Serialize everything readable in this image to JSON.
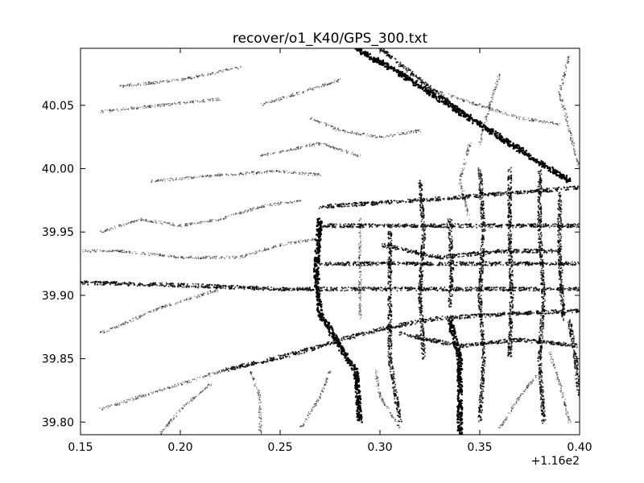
{
  "chart_data": {
    "type": "scatter",
    "title": "recover/o1_K40/GPS_300.txt",
    "xlabel": "",
    "ylabel": "",
    "x_offset_label": "+1.16e2",
    "xlim": [
      0.15,
      0.4
    ],
    "ylim": [
      39.79,
      40.095
    ],
    "x_ticks": [
      0.15,
      0.2,
      0.25,
      0.3,
      0.35,
      0.4
    ],
    "x_tick_labels": [
      "0.15",
      "0.20",
      "0.25",
      "0.30",
      "0.35",
      "0.40"
    ],
    "y_ticks": [
      39.8,
      39.85,
      39.9,
      39.95,
      40.0,
      40.05
    ],
    "y_tick_labels": [
      "39.80",
      "39.85",
      "39.90",
      "39.95",
      "40.00",
      "40.05"
    ],
    "grid": false,
    "marker_color": "#000000",
    "series": [
      {
        "kind": "tracks",
        "tracks": [
          {
            "points": [
              [
                0.288,
                40.095
              ],
              [
                0.31,
                40.075
              ],
              [
                0.34,
                40.045
              ],
              [
                0.36,
                40.025
              ],
              [
                0.38,
                40.005
              ],
              [
                0.395,
                39.99
              ]
            ],
            "weight": 3
          },
          {
            "points": [
              [
                0.3,
                40.095
              ],
              [
                0.32,
                40.07
              ],
              [
                0.345,
                40.04
              ]
            ],
            "weight": 2
          },
          {
            "points": [
              [
                0.27,
                39.96
              ],
              [
                0.268,
                39.92
              ],
              [
                0.27,
                39.885
              ],
              [
                0.28,
                39.86
              ],
              [
                0.288,
                39.84
              ],
              [
                0.29,
                39.8
              ]
            ],
            "weight": 3
          },
          {
            "points": [
              [
                0.335,
                39.88
              ],
              [
                0.34,
                39.85
              ],
              [
                0.34,
                39.82
              ],
              [
                0.34,
                39.79
              ]
            ],
            "weight": 3
          },
          {
            "points": [
              [
                0.395,
                39.88
              ],
              [
                0.398,
                39.85
              ],
              [
                0.4,
                39.82
              ]
            ],
            "weight": 2
          },
          {
            "points": [
              [
                0.22,
                39.84
              ],
              [
                0.26,
                39.855
              ],
              [
                0.28,
                39.865
              ],
              [
                0.305,
                39.875
              ],
              [
                0.33,
                39.882
              ],
              [
                0.36,
                39.885
              ],
              [
                0.4,
                39.888
              ]
            ],
            "weight": 2
          },
          {
            "points": [
              [
                0.15,
                39.91
              ],
              [
                0.2,
                39.908
              ],
              [
                0.25,
                39.905
              ],
              [
                0.3,
                39.905
              ],
              [
                0.35,
                39.905
              ],
              [
                0.4,
                39.905
              ]
            ],
            "weight": 2
          },
          {
            "points": [
              [
                0.27,
                39.925
              ],
              [
                0.3,
                39.925
              ],
              [
                0.35,
                39.925
              ],
              [
                0.4,
                39.925
              ]
            ],
            "weight": 2
          },
          {
            "points": [
              [
                0.27,
                39.955
              ],
              [
                0.31,
                39.955
              ],
              [
                0.35,
                39.955
              ],
              [
                0.4,
                39.955
              ]
            ],
            "weight": 2
          },
          {
            "points": [
              [
                0.27,
                39.97
              ],
              [
                0.32,
                39.975
              ],
              [
                0.36,
                39.98
              ],
              [
                0.4,
                39.985
              ]
            ],
            "weight": 2
          },
          {
            "points": [
              [
                0.3,
                39.94
              ],
              [
                0.33,
                39.93
              ],
              [
                0.36,
                39.935
              ],
              [
                0.39,
                39.935
              ]
            ],
            "weight": 2
          },
          {
            "points": [
              [
                0.31,
                39.87
              ],
              [
                0.34,
                39.86
              ],
              [
                0.37,
                39.865
              ],
              [
                0.4,
                39.86
              ]
            ],
            "weight": 2
          },
          {
            "points": [
              [
                0.305,
                39.95
              ],
              [
                0.305,
                39.9
              ],
              [
                0.305,
                39.85
              ],
              [
                0.31,
                39.8
              ]
            ],
            "weight": 2
          },
          {
            "points": [
              [
                0.32,
                39.99
              ],
              [
                0.322,
                39.95
              ],
              [
                0.32,
                39.9
              ],
              [
                0.322,
                39.85
              ]
            ],
            "weight": 2
          },
          {
            "points": [
              [
                0.35,
                40.0
              ],
              [
                0.352,
                39.95
              ],
              [
                0.35,
                39.9
              ],
              [
                0.352,
                39.85
              ],
              [
                0.35,
                39.8
              ]
            ],
            "weight": 2
          },
          {
            "points": [
              [
                0.365,
                40.0
              ],
              [
                0.365,
                39.95
              ],
              [
                0.366,
                39.9
              ],
              [
                0.365,
                39.85
              ]
            ],
            "weight": 2
          },
          {
            "points": [
              [
                0.38,
                40.0
              ],
              [
                0.38,
                39.95
              ],
              [
                0.382,
                39.9
              ],
              [
                0.38,
                39.85
              ],
              [
                0.382,
                39.8
              ]
            ],
            "weight": 2
          },
          {
            "points": [
              [
                0.39,
                39.98
              ],
              [
                0.39,
                39.93
              ],
              [
                0.392,
                39.88
              ]
            ],
            "weight": 2
          },
          {
            "points": [
              [
                0.29,
                39.96
              ],
              [
                0.29,
                39.92
              ],
              [
                0.29,
                39.88
              ]
            ],
            "weight": 1
          },
          {
            "points": [
              [
                0.335,
                39.96
              ],
              [
                0.336,
                39.92
              ],
              [
                0.335,
                39.89
              ]
            ],
            "weight": 2
          },
          {
            "points": [
              [
                0.265,
                40.04
              ],
              [
                0.28,
                40.03
              ],
              [
                0.3,
                40.025
              ],
              [
                0.32,
                40.03
              ]
            ],
            "weight": 1
          },
          {
            "points": [
              [
                0.24,
                40.05
              ],
              [
                0.26,
                40.06
              ],
              [
                0.28,
                40.07
              ]
            ],
            "weight": 1
          },
          {
            "points": [
              [
                0.33,
                40.06
              ],
              [
                0.35,
                40.05
              ],
              [
                0.37,
                40.04
              ],
              [
                0.39,
                40.035
              ]
            ],
            "weight": 1
          },
          {
            "points": [
              [
                0.185,
                39.99
              ],
              [
                0.22,
                39.995
              ],
              [
                0.25,
                39.998
              ],
              [
                0.27,
                39.995
              ]
            ],
            "weight": 1
          },
          {
            "points": [
              [
                0.24,
                40.01
              ],
              [
                0.27,
                40.02
              ],
              [
                0.29,
                40.01
              ]
            ],
            "weight": 1
          },
          {
            "points": [
              [
                0.35,
                40.02
              ],
              [
                0.355,
                40.05
              ],
              [
                0.36,
                40.075
              ]
            ],
            "weight": 1
          },
          {
            "points": [
              [
                0.23,
                39.93
              ],
              [
                0.25,
                39.94
              ],
              [
                0.27,
                39.945
              ]
            ],
            "weight": 1
          },
          {
            "points": [
              [
                0.15,
                39.935
              ],
              [
                0.17,
                39.935
              ],
              [
                0.2,
                39.93
              ],
              [
                0.23,
                39.93
              ]
            ],
            "weight": 1
          },
          {
            "points": [
              [
                0.16,
                39.87
              ],
              [
                0.19,
                39.89
              ],
              [
                0.22,
                39.905
              ]
            ],
            "weight": 1
          },
          {
            "points": [
              [
                0.16,
                39.81
              ],
              [
                0.18,
                39.82
              ],
              [
                0.2,
                39.83
              ],
              [
                0.22,
                39.84
              ]
            ],
            "weight": 1
          },
          {
            "points": [
              [
                0.19,
                39.79
              ],
              [
                0.2,
                39.81
              ],
              [
                0.215,
                39.83
              ]
            ],
            "weight": 1
          },
          {
            "points": [
              [
                0.24,
                39.79
              ],
              [
                0.24,
                39.82
              ],
              [
                0.235,
                39.84
              ]
            ],
            "weight": 1
          },
          {
            "points": [
              [
                0.26,
                39.795
              ],
              [
                0.27,
                39.82
              ],
              [
                0.275,
                39.84
              ]
            ],
            "weight": 1
          },
          {
            "points": [
              [
                0.31,
                39.795
              ],
              [
                0.3,
                39.82
              ],
              [
                0.298,
                39.84
              ]
            ],
            "weight": 1
          },
          {
            "points": [
              [
                0.36,
                39.795
              ],
              [
                0.37,
                39.82
              ],
              [
                0.38,
                39.84
              ]
            ],
            "weight": 1
          },
          {
            "points": [
              [
                0.395,
                39.8
              ],
              [
                0.39,
                39.83
              ],
              [
                0.385,
                39.855
              ]
            ],
            "weight": 1
          },
          {
            "points": [
              [
                0.2,
                39.955
              ],
              [
                0.22,
                39.96
              ],
              [
                0.24,
                39.97
              ],
              [
                0.26,
                39.975
              ]
            ],
            "weight": 1
          },
          {
            "points": [
              [
                0.16,
                39.95
              ],
              [
                0.18,
                39.96
              ],
              [
                0.2,
                39.955
              ]
            ],
            "weight": 1
          },
          {
            "points": [
              [
                0.17,
                40.065
              ],
              [
                0.2,
                40.07
              ],
              [
                0.23,
                40.08
              ]
            ],
            "weight": 1
          },
          {
            "points": [
              [
                0.16,
                40.045
              ],
              [
                0.19,
                40.05
              ],
              [
                0.22,
                40.055
              ]
            ],
            "weight": 1
          },
          {
            "points": [
              [
                0.345,
                40.02
              ],
              [
                0.34,
                39.99
              ],
              [
                0.345,
                39.96
              ]
            ],
            "weight": 1
          },
          {
            "points": [
              [
                0.395,
                40.09
              ],
              [
                0.39,
                40.06
              ],
              [
                0.395,
                40.03
              ],
              [
                0.4,
                40.0
              ]
            ],
            "weight": 1
          }
        ]
      }
    ]
  }
}
